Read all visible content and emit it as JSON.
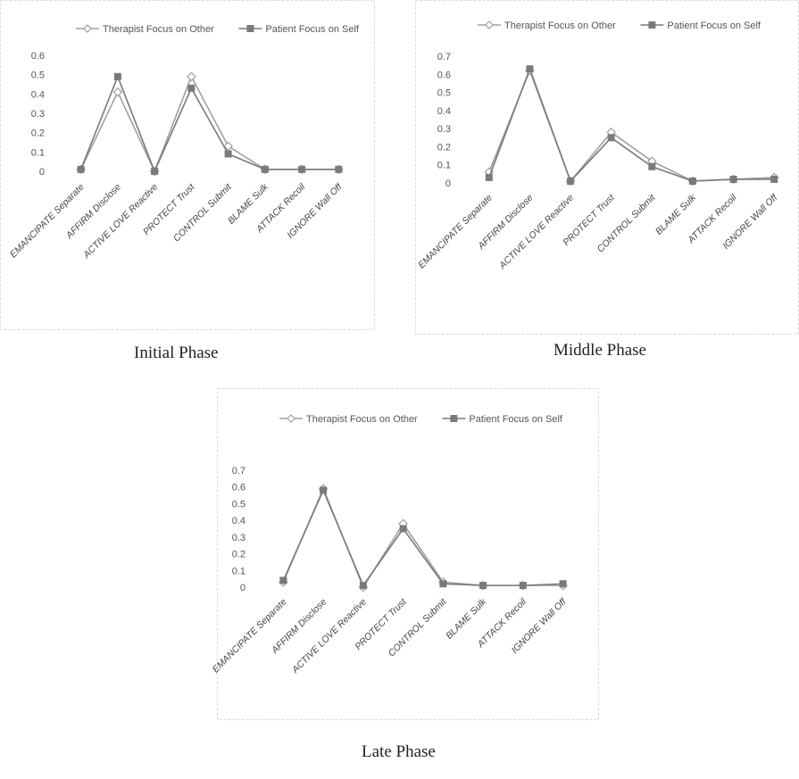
{
  "colors": {
    "therapist": "#a0a0a0",
    "patient": "#7a7a7a",
    "frame": "#d9d9d9"
  },
  "legend": {
    "series_a": "Therapist Focus on Other",
    "series_b": "Patient Focus on Self"
  },
  "chart_data": [
    {
      "type": "line",
      "caption": "Initial Phase",
      "categories": [
        "EMANCIPATE Separate",
        "AFFIRM Disclose",
        "ACTIVE LOVE Reactive",
        "PROTECT Trust",
        "CONTROL Submit",
        "BLAME Sulk",
        "ATTACK Recoil",
        "IGNORE Wall Off"
      ],
      "ylim": [
        0,
        0.6
      ],
      "yticks": [
        "0",
        "0.1",
        "0.2",
        "0.3",
        "0.4",
        "0.5",
        "0.6"
      ],
      "legend_position": "top",
      "series": [
        {
          "name": "Therapist Focus on Other",
          "values": [
            0.01,
            0.41,
            0.0,
            0.49,
            0.13,
            0.01,
            0.01,
            0.01
          ]
        },
        {
          "name": "Patient Focus on Self",
          "values": [
            0.01,
            0.49,
            0.0,
            0.43,
            0.09,
            0.01,
            0.01,
            0.01
          ]
        }
      ]
    },
    {
      "type": "line",
      "caption": "Middle Phase",
      "categories": [
        "EMANCIPATE Separate",
        "AFFIRM Disclose",
        "ACTIVE LOVE Reactive",
        "PROTECT Trust",
        "CONTROL Submit",
        "BLAME Sulk",
        "ATTACK Recoil",
        "IGNORE Wall Off"
      ],
      "ylim": [
        0,
        0.7
      ],
      "yticks": [
        "0",
        "0.1",
        "0.2",
        "0.3",
        "0.4",
        "0.5",
        "0.6",
        "0.7"
      ],
      "legend_position": "top",
      "series": [
        {
          "name": "Therapist Focus on Other",
          "values": [
            0.06,
            0.62,
            0.01,
            0.28,
            0.12,
            0.01,
            0.02,
            0.03
          ]
        },
        {
          "name": "Patient Focus on Self",
          "values": [
            0.03,
            0.63,
            0.01,
            0.25,
            0.09,
            0.01,
            0.02,
            0.02
          ]
        }
      ]
    },
    {
      "type": "line",
      "caption": "Late Phase",
      "categories": [
        "EMANCIPATE Separate",
        "AFFIRM Disclose",
        "ACTIVE LOVE Reactive",
        "PROTECT Trust",
        "CONTROL Submit",
        "BLAME Sulk",
        "ATTACK Recoil",
        "IGNORE Wall Off"
      ],
      "ylim": [
        0,
        0.7
      ],
      "yticks": [
        "0",
        "0.1",
        "0.2",
        "0.3",
        "0.4",
        "0.5",
        "0.6",
        "0.7"
      ],
      "legend_position": "top",
      "series": [
        {
          "name": "Therapist Focus on Other",
          "values": [
            0.03,
            0.59,
            0.0,
            0.38,
            0.03,
            0.01,
            0.01,
            0.01
          ]
        },
        {
          "name": "Patient Focus on Self",
          "values": [
            0.04,
            0.58,
            0.01,
            0.35,
            0.02,
            0.01,
            0.01,
            0.02
          ]
        }
      ]
    }
  ]
}
